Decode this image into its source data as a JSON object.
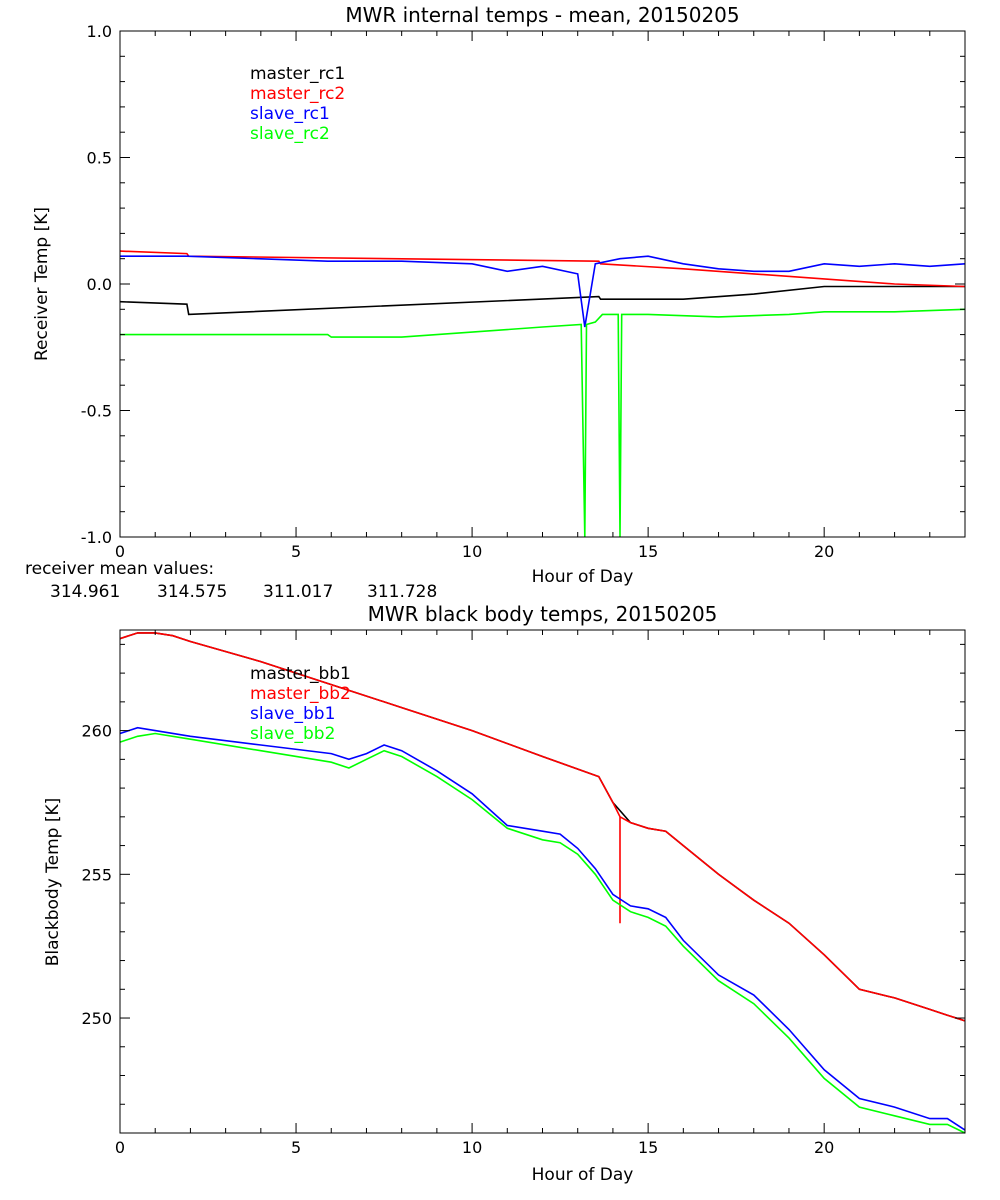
{
  "chart_data": [
    {
      "type": "line",
      "title": "MWR internal temps - mean, 20150205",
      "xlabel": "Hour of Day",
      "ylabel": "Receiver Temp [K]",
      "xlim": [
        0,
        24
      ],
      "ylim": [
        -1.0,
        1.0
      ],
      "x_ticks": [
        "0",
        "5",
        "10",
        "15",
        "20"
      ],
      "y_ticks": [
        "1.0",
        "0.5",
        "0.0",
        "-0.5",
        "-1.0"
      ],
      "legend_placement": "top-left",
      "grid": false,
      "series": [
        {
          "name": "master_rc1",
          "color": "#000000",
          "x": [
            0,
            1.9,
            1.95,
            13.6,
            13.65,
            16,
            18,
            20,
            22,
            24
          ],
          "y": [
            -0.07,
            -0.08,
            -0.12,
            -0.05,
            -0.06,
            -0.06,
            -0.04,
            -0.01,
            -0.01,
            -0.01
          ]
        },
        {
          "name": "master_rc2",
          "color": "#ff0000",
          "x": [
            0,
            1.9,
            1.95,
            13.6,
            13.65,
            16,
            18,
            20,
            22,
            24
          ],
          "y": [
            0.13,
            0.12,
            0.11,
            0.09,
            0.08,
            0.06,
            0.04,
            0.02,
            0.0,
            -0.01
          ]
        },
        {
          "name": "slave_rc1",
          "color": "#0000ff",
          "x": [
            0,
            1.9,
            5.9,
            6,
            8,
            10,
            11,
            12,
            13,
            13.2,
            13.5,
            14.2,
            15,
            16,
            17,
            18,
            19,
            20,
            21,
            22,
            23,
            24
          ],
          "y": [
            0.11,
            0.11,
            0.09,
            0.09,
            0.09,
            0.08,
            0.05,
            0.07,
            0.04,
            -0.17,
            0.08,
            0.1,
            0.11,
            0.08,
            0.06,
            0.05,
            0.05,
            0.08,
            0.07,
            0.08,
            0.07,
            0.08
          ]
        },
        {
          "name": "slave_rc2",
          "color": "#00ff00",
          "x": [
            0,
            1.9,
            5.9,
            6,
            8,
            10,
            12,
            13.1,
            13.2,
            13.25,
            13.5,
            13.7,
            14.15,
            14.2,
            14.25,
            15,
            17,
            19,
            20,
            22,
            24
          ],
          "y": [
            -0.2,
            -0.2,
            -0.2,
            -0.21,
            -0.21,
            -0.19,
            -0.17,
            -0.16,
            -1.0,
            -0.16,
            -0.15,
            -0.12,
            -0.12,
            -1.0,
            -0.12,
            -0.12,
            -0.13,
            -0.12,
            -0.11,
            -0.11,
            -0.1
          ]
        }
      ]
    },
    {
      "type": "line",
      "title": "MWR black body temps, 20150205",
      "xlabel": "Hour of Day",
      "ylabel": "Blackbody Temp [K]",
      "xlim": [
        0,
        24
      ],
      "ylim": [
        246,
        263.5
      ],
      "x_ticks": [
        "0",
        "5",
        "10",
        "15",
        "20"
      ],
      "y_ticks": [
        "260",
        "255",
        "250"
      ],
      "legend_placement": "top-left",
      "grid": false,
      "series": [
        {
          "name": "master_bb1",
          "color": "#000000",
          "x": [
            0,
            0.5,
            1,
            1.5,
            2,
            4,
            6,
            8,
            10,
            12,
            13.6,
            14,
            14.5,
            15,
            15.5,
            16,
            17,
            18,
            19,
            20,
            21,
            22,
            23,
            23.5,
            24
          ],
          "y": [
            263.2,
            263.4,
            263.4,
            263.3,
            263.1,
            262.4,
            261.6,
            260.8,
            260,
            259.1,
            258.4,
            257.5,
            256.8,
            256.6,
            256.5,
            256.0,
            255.0,
            254.1,
            253.3,
            252.2,
            251.0,
            250.7,
            250.3,
            250.1,
            249.9
          ]
        },
        {
          "name": "master_bb2",
          "color": "#ff0000",
          "x": [
            0,
            0.5,
            1,
            1.5,
            2,
            4,
            6,
            8,
            10,
            12,
            13.6,
            14,
            14.2,
            14.2,
            14.2,
            14.5,
            15,
            15.5,
            16,
            17,
            18,
            19,
            20,
            21,
            22,
            23,
            23.5,
            24
          ],
          "y": [
            263.2,
            263.4,
            263.4,
            263.3,
            263.1,
            262.4,
            261.6,
            260.8,
            260,
            259.1,
            258.4,
            257.5,
            257.0,
            253.3,
            257.0,
            256.8,
            256.6,
            256.5,
            256.0,
            255.0,
            254.1,
            253.3,
            252.2,
            251.0,
            250.7,
            250.3,
            250.1,
            249.9
          ]
        },
        {
          "name": "slave_bb1",
          "color": "#0000ff",
          "x": [
            0,
            0.5,
            1,
            2,
            4,
            6,
            6.5,
            7,
            7.5,
            8,
            9,
            10,
            11,
            12,
            12.5,
            13,
            13.5,
            14,
            14.5,
            15,
            15.5,
            16,
            17,
            18,
            19,
            20,
            21,
            22,
            23,
            23.5,
            24
          ],
          "y": [
            259.9,
            260.1,
            260.0,
            259.8,
            259.5,
            259.2,
            259.0,
            259.2,
            259.5,
            259.3,
            258.6,
            257.8,
            256.7,
            256.5,
            256.4,
            255.9,
            255.2,
            254.3,
            253.9,
            253.8,
            253.5,
            252.7,
            251.5,
            250.8,
            249.6,
            248.2,
            247.2,
            246.9,
            246.5,
            246.5,
            246.1
          ]
        },
        {
          "name": "slave_bb2",
          "color": "#00ff00",
          "x": [
            0,
            0.5,
            1,
            2,
            4,
            6,
            6.5,
            7,
            7.5,
            8,
            9,
            10,
            11,
            12,
            12.5,
            13,
            13.5,
            14,
            14.5,
            15,
            15.5,
            16,
            17,
            18,
            19,
            20,
            21,
            22,
            23,
            23.5,
            24
          ],
          "y": [
            259.6,
            259.8,
            259.9,
            259.7,
            259.3,
            258.9,
            258.7,
            259.0,
            259.3,
            259.1,
            258.4,
            257.6,
            256.6,
            256.2,
            256.1,
            255.7,
            255.0,
            254.1,
            253.7,
            253.5,
            253.2,
            252.5,
            251.3,
            250.5,
            249.3,
            247.9,
            246.9,
            246.6,
            246.3,
            246.3,
            246.0
          ]
        }
      ]
    }
  ],
  "mean_values": {
    "label": "receiver mean values:",
    "values": [
      {
        "text": "314.961",
        "color": "#000000"
      },
      {
        "text": "314.575",
        "color": "#ff0000"
      },
      {
        "text": "311.017",
        "color": "#0000ff"
      },
      {
        "text": "311.728",
        "color": "#00ff00"
      }
    ]
  }
}
